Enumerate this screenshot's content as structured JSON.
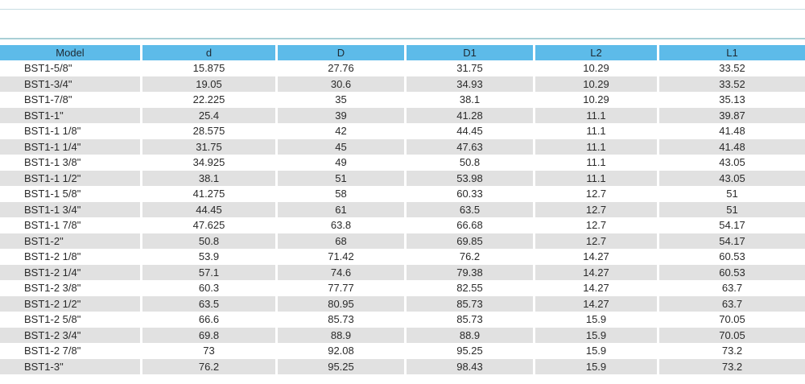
{
  "table": {
    "columns": [
      "Model",
      "d",
      "D",
      "D1",
      "L2",
      "L1"
    ],
    "rows": [
      [
        "BST1-5/8\"",
        "15.875",
        "27.76",
        "31.75",
        "10.29",
        "33.52"
      ],
      [
        "BST1-3/4\"",
        "19.05",
        "30.6",
        "34.93",
        "10.29",
        "33.52"
      ],
      [
        "BST1-7/8\"",
        "22.225",
        "35",
        "38.1",
        "10.29",
        "35.13"
      ],
      [
        "BST1-1\"",
        "25.4",
        "39",
        "41.28",
        "11.1",
        "39.87"
      ],
      [
        "BST1-1 1/8\"",
        "28.575",
        "42",
        "44.45",
        "11.1",
        "41.48"
      ],
      [
        "BST1-1 1/4\"",
        "31.75",
        "45",
        "47.63",
        "11.1",
        "41.48"
      ],
      [
        "BST1-1 3/8\"",
        "34.925",
        "49",
        "50.8",
        "11.1",
        "43.05"
      ],
      [
        "BST1-1 1/2\"",
        "38.1",
        "51",
        "53.98",
        "11.1",
        "43.05"
      ],
      [
        "BST1-1 5/8\"",
        "41.275",
        "58",
        "60.33",
        "12.7",
        "51"
      ],
      [
        "BST1-1 3/4\"",
        "44.45",
        "61",
        "63.5",
        "12.7",
        "51"
      ],
      [
        "BST1-1 7/8\"",
        "47.625",
        "63.8",
        "66.68",
        "12.7",
        "54.17"
      ],
      [
        "BST1-2\"",
        "50.8",
        "68",
        "69.85",
        "12.7",
        "54.17"
      ],
      [
        "BST1-2 1/8\"",
        "53.9",
        "71.42",
        "76.2",
        "14.27",
        "60.53"
      ],
      [
        "BST1-2 1/4\"",
        "57.1",
        "74.6",
        "79.38",
        "14.27",
        "60.53"
      ],
      [
        "BST1-2 3/8\"",
        "60.3",
        "77.77",
        "82.55",
        "14.27",
        "63.7"
      ],
      [
        "BST1-2 1/2\"",
        "63.5",
        "80.95",
        "85.73",
        "14.27",
        "63.7"
      ],
      [
        "BST1-2 5/8\"",
        "66.6",
        "85.73",
        "85.73",
        "15.9",
        "70.05"
      ],
      [
        "BST1-2 3/4\"",
        "69.8",
        "88.9",
        "88.9",
        "15.9",
        "70.05"
      ],
      [
        "BST1-2 7/8\"",
        "73",
        "92.08",
        "95.25",
        "15.9",
        "73.2"
      ],
      [
        "BST1-3\"",
        "76.2",
        "95.25",
        "98.43",
        "15.9",
        "73.2"
      ]
    ]
  },
  "colors": {
    "header_bg": "#5dbbe9",
    "alt_row_bg": "#e1e1e1",
    "rule": "#a9cfd6"
  }
}
